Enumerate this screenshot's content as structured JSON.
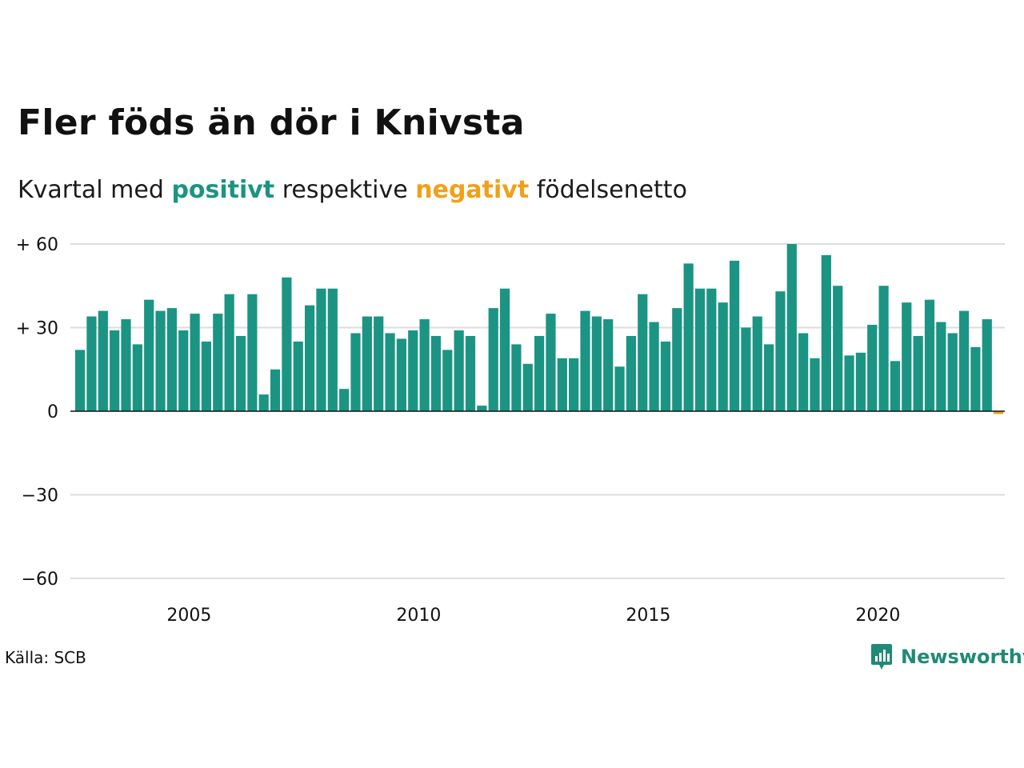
{
  "title": "Fler föds än dör i Knivsta",
  "subtitle": {
    "prefix": "Kvartal med",
    "positive": "positivt",
    "middle": "respektive",
    "negative": "negativt",
    "suffix": "födelsenetto"
  },
  "source": "Källa: SCB",
  "brand": "Newsworthy",
  "colors": {
    "positive": "#1b9483",
    "negative": "#f29f1a",
    "grid": "#dddddd",
    "brand": "#1f8a76"
  },
  "chart_data": {
    "type": "bar",
    "x_start": "2003 Q1",
    "frequency": "quarterly",
    "ylim": [
      -60,
      60
    ],
    "yticks": [
      {
        "value": 60,
        "label": "+ 60"
      },
      {
        "value": 30,
        "label": "+ 30"
      },
      {
        "value": 0,
        "label": "0"
      },
      {
        "value": -30,
        "label": "−30"
      },
      {
        "value": -60,
        "label": "−60"
      }
    ],
    "xticks": [
      "2005",
      "2010",
      "2015",
      "2020"
    ],
    "values": [
      22,
      34,
      36,
      29,
      33,
      24,
      40,
      36,
      37,
      29,
      35,
      25,
      35,
      42,
      27,
      42,
      6,
      15,
      48,
      25,
      38,
      44,
      44,
      8,
      28,
      34,
      34,
      28,
      26,
      29,
      33,
      27,
      22,
      29,
      27,
      2,
      37,
      44,
      24,
      17,
      27,
      35,
      19,
      19,
      36,
      34,
      33,
      16,
      27,
      42,
      32,
      25,
      37,
      53,
      44,
      44,
      39,
      54,
      30,
      34,
      24,
      43,
      60,
      28,
      19,
      56,
      45,
      20,
      21,
      31,
      45,
      18,
      39,
      27,
      40,
      32,
      28,
      36,
      23,
      33,
      -1
    ],
    "grid": true
  }
}
